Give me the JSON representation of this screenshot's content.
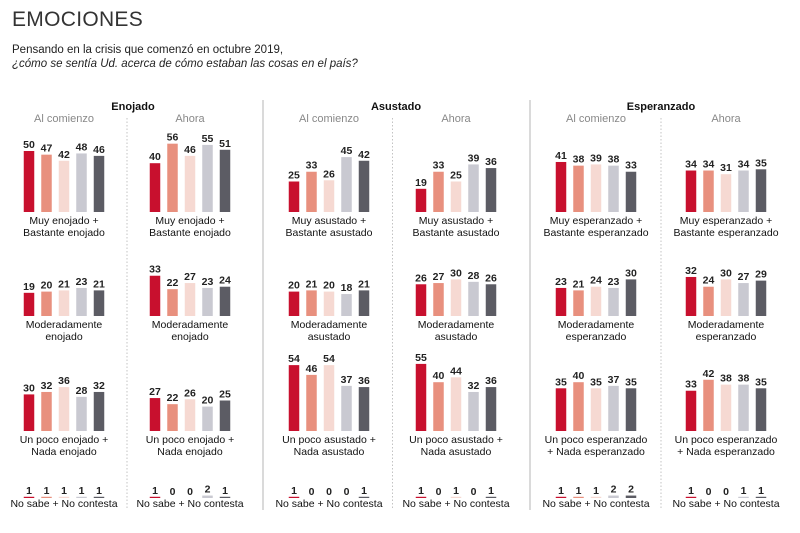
{
  "header": {
    "title": "EMOCIONES",
    "subtitle_1": "Pensando en la crisis que comenzó en octubre 2019,",
    "subtitle_2": "¿cómo se sentía Ud. acerca de cómo estaban las cosas en el país?"
  },
  "colors": [
    "#c8102e",
    "#e8907e",
    "#f6d9d2",
    "#c9c9d1",
    "#5c5c64"
  ],
  "chart_data": {
    "type": "bar",
    "groups": [
      {
        "title": "Enojado",
        "columns": [
          {
            "title": "Al comienzo",
            "rows": [
              {
                "label": [
                  "Muy enojado +",
                  "Bastante enojado"
                ],
                "values": [
                  50,
                  47,
                  42,
                  48,
                  46
                ]
              },
              {
                "label": [
                  "Moderadamente",
                  "enojado"
                ],
                "values": [
                  19,
                  20,
                  21,
                  23,
                  21
                ]
              },
              {
                "label": [
                  "Un poco enojado +",
                  "Nada enojado"
                ],
                "values": [
                  30,
                  32,
                  36,
                  28,
                  32
                ]
              },
              {
                "label": [
                  "No sabe + No contesta"
                ],
                "values": [
                  1,
                  1,
                  1,
                  1,
                  1
                ]
              }
            ]
          },
          {
            "title": "Ahora",
            "rows": [
              {
                "label": [
                  "Muy enojado +",
                  "Bastante enojado"
                ],
                "values": [
                  40,
                  56,
                  46,
                  55,
                  51
                ]
              },
              {
                "label": [
                  "Moderadamente",
                  "enojado"
                ],
                "values": [
                  33,
                  22,
                  27,
                  23,
                  24
                ]
              },
              {
                "label": [
                  "Un poco enojado +",
                  "Nada enojado"
                ],
                "values": [
                  27,
                  22,
                  26,
                  20,
                  25
                ]
              },
              {
                "label": [
                  "No sabe + No contesta"
                ],
                "values": [
                  1,
                  0,
                  0,
                  2,
                  1
                ]
              }
            ]
          }
        ]
      },
      {
        "title": "Asustado",
        "columns": [
          {
            "title": "Al comienzo",
            "rows": [
              {
                "label": [
                  "Muy asustado +",
                  "Bastante asustado"
                ],
                "values": [
                  25,
                  33,
                  26,
                  45,
                  42
                ]
              },
              {
                "label": [
                  "Moderadamente",
                  "asustado"
                ],
                "values": [
                  20,
                  21,
                  20,
                  18,
                  21
                ]
              },
              {
                "label": [
                  "Un poco asustado +",
                  "Nada asustado"
                ],
                "values": [
                  54,
                  46,
                  54,
                  37,
                  36
                ]
              },
              {
                "label": [
                  "No sabe + No contesta"
                ],
                "values": [
                  1,
                  0,
                  0,
                  0,
                  1
                ]
              }
            ]
          },
          {
            "title": "Ahora",
            "rows": [
              {
                "label": [
                  "Muy asustado +",
                  "Bastante asustado"
                ],
                "values": [
                  19,
                  33,
                  25,
                  39,
                  36
                ]
              },
              {
                "label": [
                  "Moderadamente",
                  "asustado"
                ],
                "values": [
                  26,
                  27,
                  30,
                  28,
                  26
                ]
              },
              {
                "label": [
                  "Un poco asustado +",
                  "Nada asustado"
                ],
                "values": [
                  55,
                  40,
                  44,
                  32,
                  36
                ]
              },
              {
                "label": [
                  "No sabe + No contesta"
                ],
                "values": [
                  1,
                  0,
                  1,
                  0,
                  1
                ]
              }
            ]
          }
        ]
      },
      {
        "title": "Esperanzado",
        "columns": [
          {
            "title": "Al comienzo",
            "rows": [
              {
                "label": [
                  "Muy esperanzado +",
                  "Bastante esperanzado"
                ],
                "values": [
                  41,
                  38,
                  39,
                  38,
                  33
                ]
              },
              {
                "label": [
                  "Moderadamente",
                  "esperanzado"
                ],
                "values": [
                  23,
                  21,
                  24,
                  23,
                  30
                ]
              },
              {
                "label": [
                  "Un poco esperanzado",
                  "+ Nada esperanzado"
                ],
                "values": [
                  35,
                  40,
                  35,
                  37,
                  35
                ]
              },
              {
                "label": [
                  "No sabe + No contesta"
                ],
                "values": [
                  1,
                  1,
                  1,
                  2,
                  2
                ]
              }
            ]
          },
          {
            "title": "Ahora",
            "rows": [
              {
                "label": [
                  "Muy esperanzado +",
                  "Bastante esperanzado"
                ],
                "values": [
                  34,
                  34,
                  31,
                  34,
                  35
                ]
              },
              {
                "label": [
                  "Moderadamente",
                  "esperanzado"
                ],
                "values": [
                  32,
                  24,
                  30,
                  27,
                  29
                ]
              },
              {
                "label": [
                  "Un poco esperanzado",
                  "+ Nada esperanzado"
                ],
                "values": [
                  33,
                  42,
                  38,
                  38,
                  35
                ]
              },
              {
                "label": [
                  "No sabe + No contesta"
                ],
                "values": [
                  1,
                  0,
                  0,
                  1,
                  1
                ]
              }
            ]
          }
        ]
      }
    ]
  }
}
